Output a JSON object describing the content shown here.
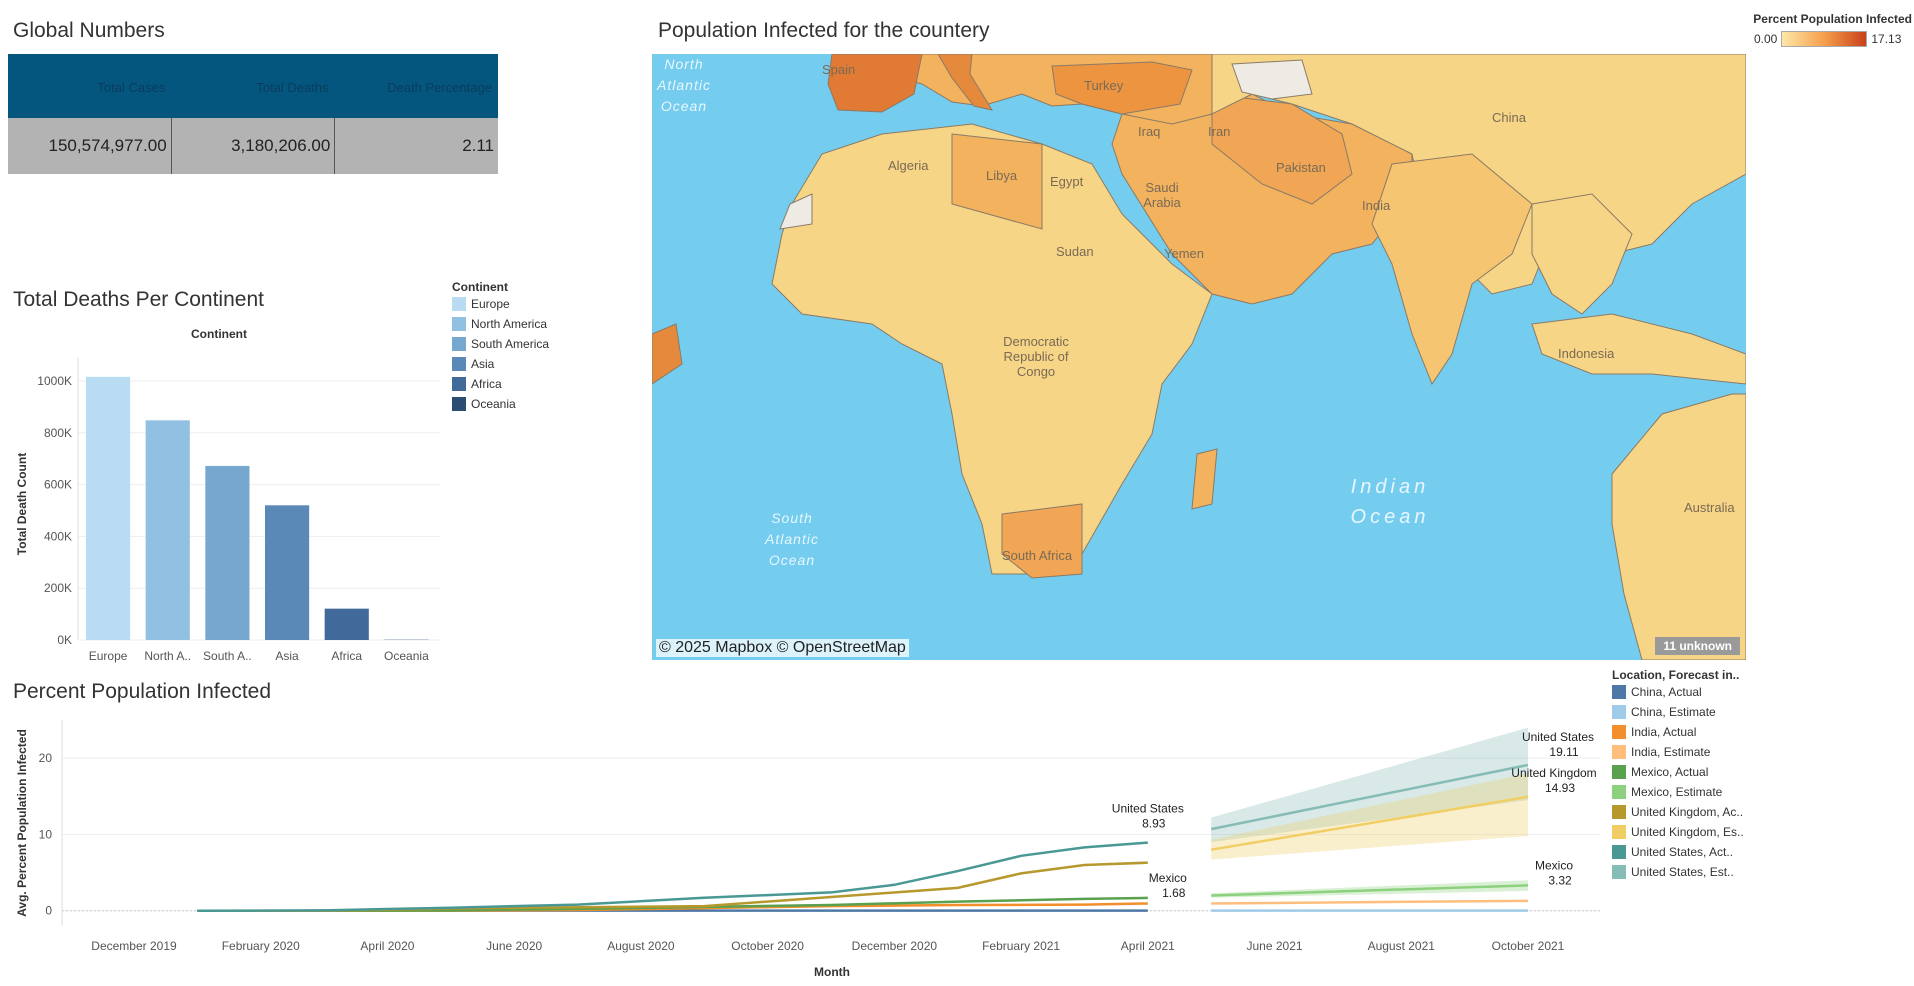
{
  "global_numbers": {
    "title": "Global Numbers",
    "headers": [
      "Total Cases",
      "Total Deaths",
      "Death Percentage"
    ],
    "values": [
      "150,574,977.00",
      "3,180,206.00",
      "2.11"
    ]
  },
  "map": {
    "title": "Population Infected for the countery",
    "legend_title": "Percent Population Infected",
    "legend_min": "0.00",
    "legend_max": "17.13",
    "credit": "© 2025 Mapbox © OpenStreetMap",
    "unknown_badge": "11 unknown",
    "countries": [
      "Spain",
      "Turkey",
      "Iraq",
      "Iran",
      "China",
      "Algeria",
      "Libya",
      "Egypt",
      "Saudi Arabia",
      "Pakistan",
      "India",
      "Sudan",
      "Yemen",
      "Democratic Republic of Congo",
      "Indonesia",
      "Australia",
      "South Africa"
    ],
    "oceans": [
      "North Atlantic Ocean",
      "South Atlantic Ocean",
      "Indian Ocean"
    ],
    "colors": {
      "ocean": "#74cdee",
      "land_low": "#f7d586",
      "land_mid": "#f2b25e",
      "land_high": "#e07a34",
      "no_data": "#eeeae4"
    }
  },
  "bar_chart": {
    "title": "Total Deaths Per Continent",
    "legend_title": "Continent"
  },
  "line_chart": {
    "title": "Percent Population Infected",
    "legend_title": "Location, Forecast in..",
    "annotations": [
      {
        "name": "United States",
        "value": "8.93"
      },
      {
        "name": "Mexico",
        "value": "1.68"
      },
      {
        "name": "United States",
        "value": "19.11"
      },
      {
        "name": "United Kingdom",
        "value": "14.93"
      },
      {
        "name": "Mexico",
        "value": "3.32"
      }
    ]
  },
  "chart_data": [
    {
      "type": "bar",
      "title": "Total Deaths Per Continent",
      "xlabel": "Continent",
      "ylabel": "Total Death Count",
      "categories": [
        "Europe",
        "North America",
        "South America",
        "Asia",
        "Africa",
        "Oceania"
      ],
      "tick_labels": [
        "Europe",
        "North A..",
        "South A..",
        "Asia",
        "Africa",
        "Oceania"
      ],
      "values": [
        1016000,
        848000,
        672000,
        520000,
        121000,
        1000
      ],
      "colors": [
        "#b9dcf2",
        "#92c0e2",
        "#76a7cf",
        "#5a89b8",
        "#41699a",
        "#2b4d74"
      ],
      "ylim": [
        0,
        1050000
      ],
      "yticks": [
        0,
        200000,
        400000,
        600000,
        800000,
        1000000
      ],
      "ytick_labels": [
        "0K",
        "200K",
        "400K",
        "600K",
        "800K",
        "1000K"
      ],
      "legend": "right",
      "grid": true
    },
    {
      "type": "line",
      "title": "Percent Population Infected",
      "xlabel": "Month",
      "ylabel": "Avg. Percent Population Infected",
      "x_ticks": [
        "December 2019",
        "February 2020",
        "April 2020",
        "June 2020",
        "August 2020",
        "October 2020",
        "December 2020",
        "February 2021",
        "April 2021",
        "June 2021",
        "August 2021",
        "October 2021"
      ],
      "y_ticks": [
        0,
        10,
        20
      ],
      "ylim": [
        -2,
        25
      ],
      "legend": "right",
      "series": [
        {
          "name": "China, Actual",
          "color": "#4e79a7",
          "x": [
            "2020-01",
            "2020-03",
            "2020-05",
            "2020-07",
            "2020-09",
            "2020-11",
            "2021-01",
            "2021-03",
            "2021-04"
          ],
          "y": [
            0.0,
            0.01,
            0.01,
            0.01,
            0.01,
            0.01,
            0.01,
            0.01,
            0.01
          ]
        },
        {
          "name": "China, Estimate",
          "color": "#a0cbe8",
          "x": [
            "2021-05",
            "2021-10"
          ],
          "y": [
            0.01,
            0.01
          ]
        },
        {
          "name": "India, Actual",
          "color": "#f28e2b",
          "x": [
            "2020-01",
            "2020-03",
            "2020-05",
            "2020-07",
            "2020-09",
            "2020-11",
            "2021-01",
            "2021-03",
            "2021-04"
          ],
          "y": [
            0.0,
            0.0,
            0.01,
            0.1,
            0.35,
            0.6,
            0.75,
            0.8,
            0.95
          ]
        },
        {
          "name": "India, Estimate",
          "color": "#ffbe7d",
          "x": [
            "2021-05",
            "2021-10"
          ],
          "y": [
            0.95,
            1.3
          ]
        },
        {
          "name": "Mexico, Actual",
          "color": "#59a14f",
          "x": [
            "2020-01",
            "2020-03",
            "2020-05",
            "2020-07",
            "2020-09",
            "2020-11",
            "2021-01",
            "2021-03",
            "2021-04"
          ],
          "y": [
            0.0,
            0.0,
            0.05,
            0.25,
            0.5,
            0.75,
            1.2,
            1.55,
            1.68
          ]
        },
        {
          "name": "Mexico, Estimate",
          "color": "#8cd17d",
          "x": [
            "2021-05",
            "2021-10"
          ],
          "y": [
            2.0,
            3.32
          ]
        },
        {
          "name": "United Kingdom, Actual",
          "color": "#b6992d",
          "x": [
            "2020-01",
            "2020-03",
            "2020-05",
            "2020-07",
            "2020-09",
            "2020-11",
            "2021-01",
            "2021-02",
            "2021-03",
            "2021-04"
          ],
          "y": [
            0.0,
            0.0,
            0.3,
            0.45,
            0.6,
            1.8,
            3.0,
            4.9,
            6.0,
            6.3
          ]
        },
        {
          "name": "United Kingdom, Estimate",
          "color": "#f1ce63",
          "x": [
            "2021-05",
            "2021-10"
          ],
          "y": [
            8.0,
            14.93
          ]
        },
        {
          "name": "United States, Actual",
          "color": "#499894",
          "x": [
            "2020-01",
            "2020-03",
            "2020-05",
            "2020-07",
            "2020-09",
            "2020-11",
            "2020-12",
            "2021-01",
            "2021-02",
            "2021-03",
            "2021-04"
          ],
          "y": [
            0.0,
            0.05,
            0.4,
            0.8,
            1.7,
            2.4,
            3.4,
            5.2,
            7.2,
            8.3,
            8.93
          ]
        },
        {
          "name": "United States, Estimate",
          "color": "#86bcb6",
          "x": [
            "2021-05",
            "2021-10"
          ],
          "y": [
            10.7,
            19.11
          ]
        }
      ],
      "bands": [
        {
          "series": "United States, Estimate",
          "x": [
            "2021-05",
            "2021-10"
          ],
          "lower": [
            9.0,
            14.5
          ],
          "upper": [
            12.2,
            24.0
          ]
        },
        {
          "series": "United Kingdom, Estimate",
          "x": [
            "2021-05",
            "2021-10"
          ],
          "lower": [
            6.7,
            9.8
          ],
          "upper": [
            9.3,
            18.0
          ]
        },
        {
          "series": "Mexico, Estimate",
          "x": [
            "2021-05",
            "2021-10"
          ],
          "lower": [
            1.7,
            2.6
          ],
          "upper": [
            2.3,
            4.0
          ]
        }
      ]
    }
  ]
}
